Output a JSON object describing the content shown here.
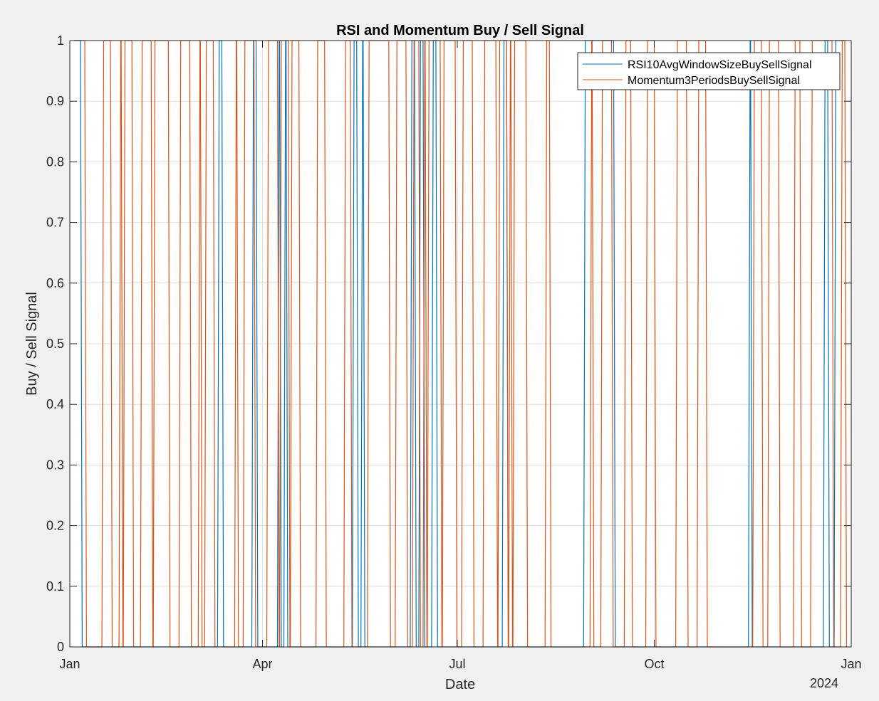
{
  "chart_data": {
    "type": "line",
    "title": "RSI and Momentum Buy / Sell Signal",
    "xlabel": "Date",
    "ylabel": "Buy / Sell Signal",
    "x_ticks": [
      {
        "date": "2023-01-01",
        "label": "Jan"
      },
      {
        "date": "2023-04-01",
        "label": "Apr"
      },
      {
        "date": "2023-07-01",
        "label": "Jul"
      },
      {
        "date": "2023-10-01",
        "label": "Oct"
      },
      {
        "date": "2024-01-01",
        "label": "Jan"
      }
    ],
    "x_secondary_label": "2024",
    "xlim": [
      "2023-01-01",
      "2024-01-01"
    ],
    "ylim": [
      0,
      1
    ],
    "y_ticks": [
      0,
      0.1,
      0.2,
      0.3,
      0.4,
      0.5,
      0.6,
      0.7,
      0.8,
      0.9,
      1
    ],
    "grid": true,
    "legend_position": "top-right",
    "series": [
      {
        "name": "RSI10AvgWindowSizeBuySellSignal",
        "color": "#0072bd",
        "signal_start": "2023-01-03",
        "signal_end": "2023-12-29",
        "initial_value": 1,
        "toggle_dates": [
          "2023-01-06",
          "2023-03-11",
          "2023-03-13",
          "2023-03-27",
          "2023-03-29",
          "2023-04-08",
          "2023-04-09",
          "2023-04-11",
          "2023-04-12",
          "2023-05-13",
          "2023-05-15",
          "2023-05-17",
          "2023-05-18",
          "2023-06-09",
          "2023-06-11",
          "2023-06-13",
          "2023-06-15",
          "2023-06-19",
          "2023-06-21",
          "2023-07-22",
          "2023-07-24",
          "2023-08-29",
          "2023-09-12",
          "2023-11-14",
          "2023-11-15",
          "2023-12-19",
          "2023-12-21",
          "2023-12-24"
        ]
      },
      {
        "name": "Momentum3PeriodsBuySellSignal",
        "color": "#d95319",
        "signal_start": "2023-01-03",
        "signal_end": "2023-12-29",
        "initial_value": 1,
        "toggle_dates": [
          "2023-01-08",
          "2023-01-16",
          "2023-01-20",
          "2023-01-24",
          "2023-01-25",
          "2023-01-26",
          "2023-01-30",
          "2023-02-03",
          "2023-02-08",
          "2023-02-09",
          "2023-02-16",
          "2023-02-21",
          "2023-02-26",
          "2023-03-02",
          "2023-03-03",
          "2023-03-05",
          "2023-03-09",
          "2023-03-19",
          "2023-03-20",
          "2023-03-23",
          "2023-03-28",
          "2023-04-03",
          "2023-04-08",
          "2023-04-09",
          "2023-04-13",
          "2023-04-14",
          "2023-04-18",
          "2023-04-26",
          "2023-04-30",
          "2023-05-09",
          "2023-05-12",
          "2023-05-20",
          "2023-05-30",
          "2023-06-02",
          "2023-06-07",
          "2023-06-10",
          "2023-06-13",
          "2023-06-15",
          "2023-06-16",
          "2023-06-17",
          "2023-06-23",
          "2023-06-24",
          "2023-06-30",
          "2023-07-03",
          "2023-07-08",
          "2023-07-13",
          "2023-07-19",
          "2023-07-20",
          "2023-07-24",
          "2023-07-25",
          "2023-07-26",
          "2023-07-27",
          "2023-08-02",
          "2023-08-11",
          "2023-08-13",
          "2023-09-01",
          "2023-09-02",
          "2023-09-06",
          "2023-09-11",
          "2023-09-17",
          "2023-09-20",
          "2023-09-27",
          "2023-10-01",
          "2023-10-11",
          "2023-10-16",
          "2023-10-21",
          "2023-10-25",
          "2023-11-16",
          "2023-11-20",
          "2023-11-23",
          "2023-11-28",
          "2023-12-05",
          "2023-12-08",
          "2023-12-13",
          "2023-12-23",
          "2023-12-27",
          "2023-12-29"
        ]
      }
    ]
  }
}
